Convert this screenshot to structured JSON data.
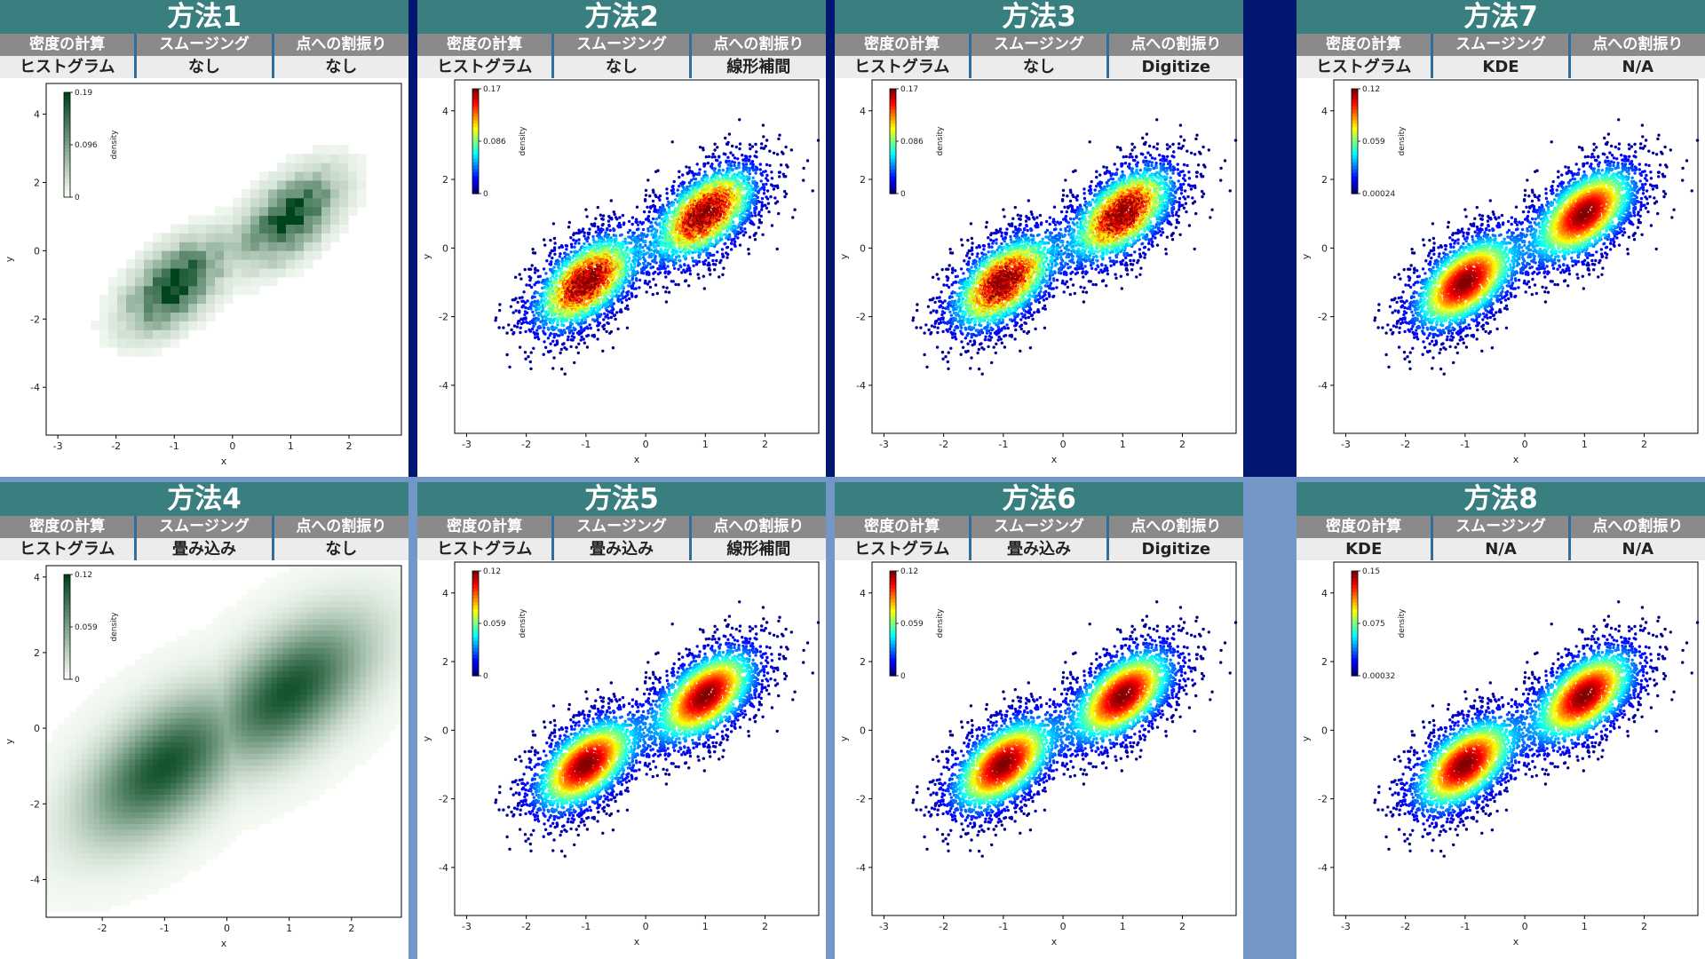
{
  "header_labels": {
    "density": "密度の計算",
    "smoothing": "スムージング",
    "assignment": "点への割振り"
  },
  "colors": {
    "title_bg": "#3a7f7f",
    "header_bg": "#8a8a8a",
    "value_bg": "#ececec",
    "divider_top": "#011670",
    "divider_bottom": "#7397c6"
  },
  "panels": [
    {
      "title": "方法1",
      "density": "ヒストグラム",
      "smoothing": "なし",
      "assignment": "なし"
    },
    {
      "title": "方法2",
      "density": "ヒストグラム",
      "smoothing": "なし",
      "assignment": "線形補間"
    },
    {
      "title": "方法3",
      "density": "ヒストグラム",
      "smoothing": "なし",
      "assignment": "Digitize"
    },
    {
      "title": "方法7",
      "density": "ヒストグラム",
      "smoothing": "KDE",
      "assignment": "N/A"
    },
    {
      "title": "方法4",
      "density": "ヒストグラム",
      "smoothing": "畳み込み",
      "assignment": "なし"
    },
    {
      "title": "方法5",
      "density": "ヒストグラム",
      "smoothing": "畳み込み",
      "assignment": "線形補間"
    },
    {
      "title": "方法6",
      "density": "ヒストグラム",
      "smoothing": "畳み込み",
      "assignment": "Digitize"
    },
    {
      "title": "方法8",
      "density": "KDE",
      "smoothing": "N/A",
      "assignment": "N/A"
    }
  ],
  "chart_data": [
    {
      "type": "heatmap",
      "colormap": "Greens",
      "xlabel": "x",
      "ylabel": "y",
      "xlim": [
        -3.2,
        2.9
      ],
      "ylim": [
        -5.4,
        4.9
      ],
      "xticks": [
        -3,
        -2,
        -1,
        0,
        1,
        2
      ],
      "yticks": [
        -4,
        -2,
        0,
        2,
        4
      ],
      "colorbar": {
        "label": "density",
        "ticks": [
          "0.19",
          "0.096",
          "0"
        ]
      },
      "clusters": [
        {
          "center": [
            -1,
            -1
          ],
          "sd": [
            0.5,
            0.8
          ],
          "correlation": 0.55
        },
        {
          "center": [
            1,
            1
          ],
          "sd": [
            0.5,
            0.8
          ],
          "correlation": 0.55
        }
      ]
    },
    {
      "type": "scatter",
      "colormap": "jet",
      "xlabel": "x",
      "ylabel": "y",
      "xlim": [
        -3.2,
        2.9
      ],
      "ylim": [
        -5.4,
        4.9
      ],
      "xticks": [
        -3,
        -2,
        -1,
        0,
        1,
        2
      ],
      "yticks": [
        -4,
        -2,
        0,
        2,
        4
      ],
      "colorbar": {
        "label": "density",
        "ticks": [
          "0.17",
          "0.086",
          "0"
        ]
      },
      "clusters": [
        {
          "center": [
            -1,
            -1
          ],
          "sd": [
            0.5,
            0.8
          ],
          "correlation": 0.55
        },
        {
          "center": [
            1,
            1
          ],
          "sd": [
            0.5,
            0.8
          ],
          "correlation": 0.55
        }
      ]
    },
    {
      "type": "scatter",
      "colormap": "jet",
      "xlabel": "x",
      "ylabel": "y",
      "xlim": [
        -3.2,
        2.9
      ],
      "ylim": [
        -5.4,
        4.9
      ],
      "xticks": [
        -3,
        -2,
        -1,
        0,
        1,
        2
      ],
      "yticks": [
        -4,
        -2,
        0,
        2,
        4
      ],
      "colorbar": {
        "label": "density",
        "ticks": [
          "0.17",
          "0.086",
          "0"
        ]
      },
      "clusters": [
        {
          "center": [
            -1,
            -1
          ],
          "sd": [
            0.5,
            0.8
          ],
          "correlation": 0.55
        },
        {
          "center": [
            1,
            1
          ],
          "sd": [
            0.5,
            0.8
          ],
          "correlation": 0.55
        }
      ]
    },
    {
      "type": "scatter",
      "colormap": "jet",
      "xlabel": "x",
      "ylabel": "y",
      "xlim": [
        -3.2,
        2.9
      ],
      "ylim": [
        -5.4,
        4.9
      ],
      "xticks": [
        -3,
        -2,
        -1,
        0,
        1,
        2
      ],
      "yticks": [
        -4,
        -2,
        0,
        2,
        4
      ],
      "colorbar": {
        "label": "density",
        "ticks": [
          "0.12",
          "0.059",
          "0.00024"
        ]
      },
      "clusters": [
        {
          "center": [
            -1,
            -1
          ],
          "sd": [
            0.5,
            0.8
          ],
          "correlation": 0.55
        },
        {
          "center": [
            1,
            1
          ],
          "sd": [
            0.5,
            0.8
          ],
          "correlation": 0.55
        }
      ]
    },
    {
      "type": "heatmap",
      "colormap": "Greens",
      "xlabel": "x",
      "ylabel": "y",
      "xlim": [
        -2.9,
        2.8
      ],
      "ylim": [
        -5.0,
        4.3
      ],
      "xticks": [
        -2,
        -1,
        0,
        1,
        2
      ],
      "yticks": [
        -4,
        -2,
        0,
        2,
        4
      ],
      "colorbar": {
        "label": "density",
        "ticks": [
          "0.12",
          "0.059",
          "0"
        ]
      },
      "clusters": [
        {
          "center": [
            -1,
            -1
          ],
          "sd": [
            0.5,
            0.8
          ],
          "correlation": 0.55
        },
        {
          "center": [
            1,
            1
          ],
          "sd": [
            0.5,
            0.8
          ],
          "correlation": 0.55
        }
      ]
    },
    {
      "type": "scatter",
      "colormap": "jet",
      "xlabel": "x",
      "ylabel": "y",
      "xlim": [
        -3.2,
        2.9
      ],
      "ylim": [
        -5.4,
        4.9
      ],
      "xticks": [
        -3,
        -2,
        -1,
        0,
        1,
        2
      ],
      "yticks": [
        -4,
        -2,
        0,
        2,
        4
      ],
      "colorbar": {
        "label": "density",
        "ticks": [
          "0.12",
          "0.059",
          "0"
        ]
      },
      "clusters": [
        {
          "center": [
            -1,
            -1
          ],
          "sd": [
            0.5,
            0.8
          ],
          "correlation": 0.55
        },
        {
          "center": [
            1,
            1
          ],
          "sd": [
            0.5,
            0.8
          ],
          "correlation": 0.55
        }
      ]
    },
    {
      "type": "scatter",
      "colormap": "jet",
      "xlabel": "x",
      "ylabel": "y",
      "xlim": [
        -3.2,
        2.9
      ],
      "ylim": [
        -5.4,
        4.9
      ],
      "xticks": [
        -3,
        -2,
        -1,
        0,
        1,
        2
      ],
      "yticks": [
        -4,
        -2,
        0,
        2,
        4
      ],
      "colorbar": {
        "label": "density",
        "ticks": [
          "0.12",
          "0.059",
          "0"
        ]
      },
      "clusters": [
        {
          "center": [
            -1,
            -1
          ],
          "sd": [
            0.5,
            0.8
          ],
          "correlation": 0.55
        },
        {
          "center": [
            1,
            1
          ],
          "sd": [
            0.5,
            0.8
          ],
          "correlation": 0.55
        }
      ]
    },
    {
      "type": "scatter",
      "colormap": "jet",
      "xlabel": "x",
      "ylabel": "y",
      "xlim": [
        -3.2,
        2.9
      ],
      "ylim": [
        -5.4,
        4.9
      ],
      "xticks": [
        -3,
        -2,
        -1,
        0,
        1,
        2
      ],
      "yticks": [
        -4,
        -2,
        0,
        2,
        4
      ],
      "colorbar": {
        "label": "density",
        "ticks": [
          "0.15",
          "0.075",
          "0.00032"
        ]
      },
      "clusters": [
        {
          "center": [
            -1,
            -1
          ],
          "sd": [
            0.5,
            0.8
          ],
          "correlation": 0.55
        },
        {
          "center": [
            1,
            1
          ],
          "sd": [
            0.5,
            0.8
          ],
          "correlation": 0.55
        }
      ]
    }
  ]
}
